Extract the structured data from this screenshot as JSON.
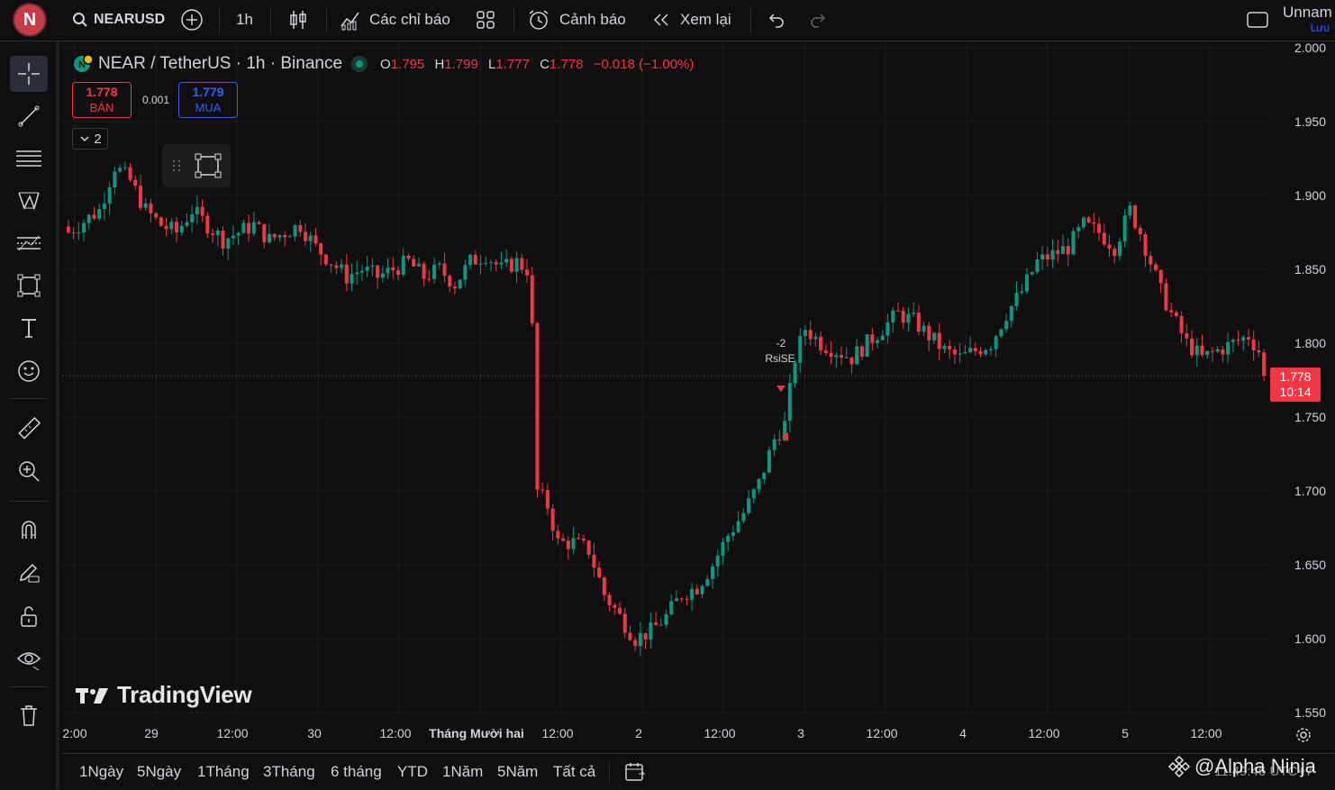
{
  "topbar": {
    "avatar_letter": "N",
    "symbol": "NEARUSD",
    "interval": "1h",
    "indicators_label": "Các chỉ báo",
    "alert_label": "Cảnh báo",
    "replay_label": "Xem lại",
    "layout_name": "Unnam",
    "save_label": "Lưu"
  },
  "legend": {
    "title": "NEAR / TetherUS · 1h · Binance",
    "o_label": "O",
    "o": "1.795",
    "h_label": "H",
    "h": "1.799",
    "l_label": "L",
    "l": "1.777",
    "c_label": "C",
    "c": "1.778",
    "change": "−0.018 (−1.00%)"
  },
  "trade": {
    "sell_price": "1.778",
    "sell_label": "BÁN",
    "spread": "0.001",
    "buy_price": "1.779",
    "buy_label": "MUA",
    "collapse_count": "2"
  },
  "signal": {
    "value": "-2",
    "label": "RsiSE"
  },
  "watermark": "TradingView",
  "price_axis": {
    "ticks": [
      "2.000",
      "1.950",
      "1.900",
      "1.850",
      "1.800",
      "1.750",
      "1.700",
      "1.650",
      "1.600",
      "1.550"
    ],
    "current_price": "1.778",
    "countdown": "10:14"
  },
  "time_axis": [
    "2:00",
    "29",
    "12:00",
    "30",
    "12:00",
    "Tháng Mười hai",
    "12:00",
    "2",
    "12:00",
    "3",
    "12:00",
    "4",
    "12:00",
    "5",
    "12:00"
  ],
  "ranges": [
    "1Ngày",
    "5Ngày",
    "1Tháng",
    "3Tháng",
    "6 tháng",
    "YTD",
    "1Năm",
    "5Năm",
    "Tất cả"
  ],
  "footer": {
    "attribution": "@Alpha Ninja",
    "clock": "11:49:46 UTC+7"
  },
  "colors": {
    "up": "#089981",
    "down": "#f23645",
    "background": "#0f0f0f",
    "accent": "#2962ff"
  },
  "chart_data": {
    "type": "candlestick",
    "ylim": [
      1.55,
      2.0
    ],
    "last_price": 1.778,
    "candles_note": "",
    "close_path": [
      [
        0,
        1.875
      ],
      [
        6,
        1.89
      ],
      [
        9,
        1.92
      ],
      [
        12,
        1.91
      ],
      [
        15,
        1.89
      ],
      [
        18,
        1.88
      ],
      [
        21,
        1.875
      ],
      [
        24,
        1.89
      ],
      [
        27,
        1.88
      ],
      [
        30,
        1.87
      ],
      [
        33,
        1.875
      ],
      [
        36,
        1.88
      ],
      [
        39,
        1.87
      ],
      [
        42,
        1.875
      ],
      [
        45,
        1.88
      ],
      [
        48,
        1.865
      ],
      [
        51,
        1.855
      ],
      [
        54,
        1.845
      ],
      [
        57,
        1.85
      ],
      [
        60,
        1.845
      ],
      [
        63,
        1.85
      ],
      [
        66,
        1.855
      ],
      [
        69,
        1.845
      ],
      [
        72,
        1.85
      ],
      [
        75,
        1.84
      ],
      [
        78,
        1.855
      ],
      [
        81,
        1.86
      ],
      [
        84,
        1.85
      ],
      [
        87,
        1.855
      ],
      [
        89,
        1.85
      ],
      [
        90,
        1.81
      ],
      [
        91,
        1.7
      ],
      [
        93,
        1.69
      ],
      [
        95,
        1.665
      ],
      [
        98,
        1.665
      ],
      [
        101,
        1.66
      ],
      [
        104,
        1.63
      ],
      [
        107,
        1.615
      ],
      [
        110,
        1.6
      ],
      [
        113,
        1.605
      ],
      [
        116,
        1.615
      ],
      [
        119,
        1.63
      ],
      [
        122,
        1.635
      ],
      [
        125,
        1.65
      ],
      [
        128,
        1.67
      ],
      [
        131,
        1.685
      ],
      [
        134,
        1.705
      ],
      [
        137,
        1.735
      ],
      [
        139,
        1.745
      ],
      [
        141,
        1.79
      ],
      [
        143,
        1.81
      ],
      [
        146,
        1.8
      ],
      [
        149,
        1.795
      ],
      [
        152,
        1.79
      ],
      [
        155,
        1.8
      ],
      [
        158,
        1.81
      ],
      [
        161,
        1.82
      ],
      [
        164,
        1.815
      ],
      [
        167,
        1.805
      ],
      [
        170,
        1.795
      ],
      [
        173,
        1.79
      ],
      [
        176,
        1.795
      ],
      [
        179,
        1.8
      ],
      [
        182,
        1.82
      ],
      [
        185,
        1.835
      ],
      [
        188,
        1.855
      ],
      [
        191,
        1.86
      ],
      [
        194,
        1.865
      ],
      [
        197,
        1.88
      ],
      [
        200,
        1.875
      ],
      [
        203,
        1.865
      ],
      [
        206,
        1.89
      ],
      [
        208,
        1.875
      ],
      [
        210,
        1.855
      ],
      [
        212,
        1.835
      ],
      [
        214,
        1.82
      ],
      [
        217,
        1.8
      ],
      [
        220,
        1.79
      ],
      [
        223,
        1.795
      ],
      [
        226,
        1.8
      ],
      [
        229,
        1.805
      ],
      [
        231,
        1.795
      ],
      [
        232,
        1.778
      ]
    ]
  }
}
